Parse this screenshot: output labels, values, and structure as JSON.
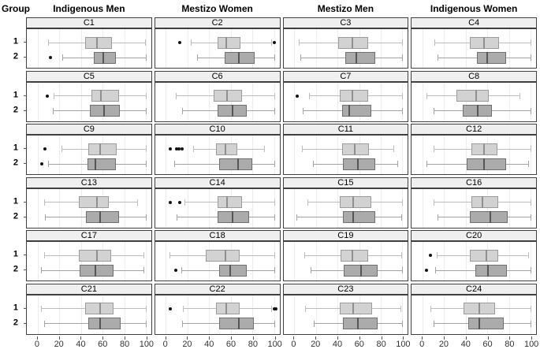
{
  "header": {
    "group_label": "Group",
    "columns": [
      "Indigenous Men",
      "Mestizo Women",
      "Mestizo Men",
      "Indigenous Women"
    ]
  },
  "colors": {
    "background": "#ffffff",
    "strip_bg": "#efefef",
    "panel_border": "#3f3f3f",
    "gridline": "#ededed",
    "group1_fill": "#d2d2d2",
    "group1_border": "#9b9b9b",
    "group1_median": "#8f8f8f",
    "group1_whisker": "#bdbdbd",
    "group2_fill": "#ababab",
    "group2_border": "#6f6f6f",
    "group2_median": "#565656",
    "group2_whisker": "#a3a3a3",
    "outlier": "#141414"
  },
  "chart_data": {
    "type": "boxplot",
    "layout": {
      "rows": 6,
      "cols": 4
    },
    "title": "",
    "xlabel": "",
    "ylabel": "Group",
    "x_range": [
      0,
      100
    ],
    "x_ticks": [
      0,
      20,
      40,
      60,
      80,
      100
    ],
    "group_labels": [
      "1",
      "2"
    ],
    "column_titles": [
      "Indigenous Men",
      "Mestizo Women",
      "Mestizo Men",
      "Indigenous Women"
    ],
    "grid": "vertical-only",
    "panels": [
      {
        "label": "C1",
        "boxes": [
          {
            "group": "1",
            "low": 10,
            "q1": 44,
            "median": 54,
            "q3": 69,
            "high": 99,
            "outliers": []
          },
          {
            "group": "2",
            "low": 23,
            "q1": 52,
            "median": 60,
            "q3": 72,
            "high": 100,
            "outliers": [
              12
            ]
          }
        ]
      },
      {
        "label": "C2",
        "boxes": [
          {
            "group": "1",
            "low": 23,
            "q1": 48,
            "median": 55,
            "q3": 69,
            "high": 97,
            "outliers": [
              13,
              100
            ]
          },
          {
            "group": "2",
            "low": 29,
            "q1": 54,
            "median": 67,
            "q3": 82,
            "high": 100,
            "outliers": []
          }
        ]
      },
      {
        "label": "C3",
        "boxes": [
          {
            "group": "1",
            "low": 4,
            "q1": 41,
            "median": 53,
            "q3": 68,
            "high": 100,
            "outliers": []
          },
          {
            "group": "2",
            "low": 6,
            "q1": 47,
            "median": 57,
            "q3": 75,
            "high": 100,
            "outliers": []
          }
        ]
      },
      {
        "label": "C4",
        "boxes": [
          {
            "group": "1",
            "low": 11,
            "q1": 44,
            "median": 56,
            "q3": 71,
            "high": 100,
            "outliers": []
          },
          {
            "group": "2",
            "low": 14,
            "q1": 50,
            "median": 59,
            "q3": 77,
            "high": 100,
            "outliers": []
          }
        ]
      },
      {
        "label": "C5",
        "boxes": [
          {
            "group": "1",
            "low": 15,
            "q1": 50,
            "median": 58,
            "q3": 75,
            "high": 100,
            "outliers": [
              9
            ]
          },
          {
            "group": "2",
            "low": 14,
            "q1": 48,
            "median": 61,
            "q3": 76,
            "high": 100,
            "outliers": []
          }
        ]
      },
      {
        "label": "C6",
        "boxes": [
          {
            "group": "1",
            "low": 9,
            "q1": 44,
            "median": 56,
            "q3": 70,
            "high": 100,
            "outliers": []
          },
          {
            "group": "2",
            "low": 15,
            "q1": 48,
            "median": 61,
            "q3": 75,
            "high": 100,
            "outliers": []
          }
        ]
      },
      {
        "label": "C7",
        "boxes": [
          {
            "group": "1",
            "low": 14,
            "q1": 42,
            "median": 53,
            "q3": 68,
            "high": 100,
            "outliers": [
              3
            ]
          },
          {
            "group": "2",
            "low": 8,
            "q1": 44,
            "median": 50,
            "q3": 71,
            "high": 100,
            "outliers": []
          }
        ]
      },
      {
        "label": "C8",
        "boxes": [
          {
            "group": "1",
            "low": 4,
            "q1": 31,
            "median": 49,
            "q3": 61,
            "high": 90,
            "outliers": []
          },
          {
            "group": "2",
            "low": 10,
            "q1": 37,
            "median": 50,
            "q3": 64,
            "high": 100,
            "outliers": []
          }
        ]
      },
      {
        "label": "C9",
        "boxes": [
          {
            "group": "1",
            "low": 22,
            "q1": 47,
            "median": 57,
            "q3": 73,
            "high": 100,
            "outliers": [
              7
            ]
          },
          {
            "group": "2",
            "low": 10,
            "q1": 46,
            "median": 53,
            "q3": 72,
            "high": 100,
            "outliers": [
              4
            ]
          }
        ]
      },
      {
        "label": "C10",
        "boxes": [
          {
            "group": "1",
            "low": 25,
            "q1": 46,
            "median": 54,
            "q3": 66,
            "high": 91,
            "outliers": [
              4,
              10,
              12,
              15
            ]
          },
          {
            "group": "2",
            "low": 8,
            "q1": 49,
            "median": 66,
            "q3": 80,
            "high": 100,
            "outliers": []
          }
        ]
      },
      {
        "label": "C11",
        "boxes": [
          {
            "group": "1",
            "low": 7,
            "q1": 44,
            "median": 55,
            "q3": 69,
            "high": 92,
            "outliers": []
          },
          {
            "group": "2",
            "low": 17,
            "q1": 45,
            "median": 58,
            "q3": 75,
            "high": 95,
            "outliers": []
          }
        ]
      },
      {
        "label": "C12",
        "boxes": [
          {
            "group": "1",
            "low": 10,
            "q1": 45,
            "median": 56,
            "q3": 69,
            "high": 100,
            "outliers": []
          },
          {
            "group": "2",
            "low": 4,
            "q1": 41,
            "median": 56,
            "q3": 77,
            "high": 98,
            "outliers": []
          }
        ]
      },
      {
        "label": "C13",
        "boxes": [
          {
            "group": "1",
            "low": 6,
            "q1": 38,
            "median": 54,
            "q3": 66,
            "high": 92,
            "outliers": []
          },
          {
            "group": "2",
            "low": 7,
            "q1": 45,
            "median": 57,
            "q3": 75,
            "high": 100,
            "outliers": []
          }
        ]
      },
      {
        "label": "C14",
        "boxes": [
          {
            "group": "1",
            "low": 17,
            "q1": 48,
            "median": 56,
            "q3": 70,
            "high": 100,
            "outliers": [
              4,
              13
            ]
          },
          {
            "group": "2",
            "low": 10,
            "q1": 48,
            "median": 61,
            "q3": 77,
            "high": 100,
            "outliers": []
          }
        ]
      },
      {
        "label": "C15",
        "boxes": [
          {
            "group": "1",
            "low": 12,
            "q1": 42,
            "median": 54,
            "q3": 71,
            "high": 100,
            "outliers": []
          },
          {
            "group": "2",
            "low": 2,
            "q1": 45,
            "median": 54,
            "q3": 75,
            "high": 99,
            "outliers": []
          }
        ]
      },
      {
        "label": "C16",
        "boxes": [
          {
            "group": "1",
            "low": 10,
            "q1": 45,
            "median": 55,
            "q3": 70,
            "high": 100,
            "outliers": []
          },
          {
            "group": "2",
            "low": 14,
            "q1": 44,
            "median": 62,
            "q3": 79,
            "high": 100,
            "outliers": []
          }
        ]
      },
      {
        "label": "C17",
        "boxes": [
          {
            "group": "1",
            "low": 6,
            "q1": 38,
            "median": 54,
            "q3": 68,
            "high": 98,
            "outliers": []
          },
          {
            "group": "2",
            "low": 3,
            "q1": 39,
            "median": 53,
            "q3": 70,
            "high": 98,
            "outliers": []
          }
        ]
      },
      {
        "label": "C18",
        "boxes": [
          {
            "group": "1",
            "low": 3,
            "q1": 37,
            "median": 54,
            "q3": 68,
            "high": 100,
            "outliers": []
          },
          {
            "group": "2",
            "low": 14,
            "q1": 49,
            "median": 59,
            "q3": 75,
            "high": 100,
            "outliers": [
              9
            ]
          }
        ]
      },
      {
        "label": "C19",
        "boxes": [
          {
            "group": "1",
            "low": 9,
            "q1": 43,
            "median": 53,
            "q3": 68,
            "high": 99,
            "outliers": []
          },
          {
            "group": "2",
            "low": 15,
            "q1": 46,
            "median": 61,
            "q3": 77,
            "high": 100,
            "outliers": []
          }
        ]
      },
      {
        "label": "C20",
        "boxes": [
          {
            "group": "1",
            "low": 13,
            "q1": 44,
            "median": 58,
            "q3": 70,
            "high": 98,
            "outliers": [
              7
            ]
          },
          {
            "group": "2",
            "low": 12,
            "q1": 49,
            "median": 60,
            "q3": 78,
            "high": 100,
            "outliers": [
              4
            ]
          }
        ]
      },
      {
        "label": "C21",
        "boxes": [
          {
            "group": "1",
            "low": 3,
            "q1": 44,
            "median": 57,
            "q3": 70,
            "high": 100,
            "outliers": []
          },
          {
            "group": "2",
            "low": 6,
            "q1": 47,
            "median": 57,
            "q3": 77,
            "high": 100,
            "outliers": []
          }
        ]
      },
      {
        "label": "C22",
        "boxes": [
          {
            "group": "1",
            "low": 16,
            "q1": 46,
            "median": 55,
            "q3": 68,
            "high": 97,
            "outliers": [
              4,
              100,
              102
            ]
          },
          {
            "group": "2",
            "low": 15,
            "q1": 49,
            "median": 67,
            "q3": 81,
            "high": 100,
            "outliers": []
          }
        ]
      },
      {
        "label": "C23",
        "boxes": [
          {
            "group": "1",
            "low": 10,
            "q1": 42,
            "median": 54,
            "q3": 72,
            "high": 98,
            "outliers": []
          },
          {
            "group": "2",
            "low": 18,
            "q1": 45,
            "median": 58,
            "q3": 77,
            "high": 100,
            "outliers": []
          }
        ]
      },
      {
        "label": "C24",
        "boxes": [
          {
            "group": "1",
            "low": 7,
            "q1": 38,
            "median": 52,
            "q3": 67,
            "high": 100,
            "outliers": []
          },
          {
            "group": "2",
            "low": 10,
            "q1": 42,
            "median": 52,
            "q3": 75,
            "high": 100,
            "outliers": []
          }
        ]
      }
    ]
  }
}
